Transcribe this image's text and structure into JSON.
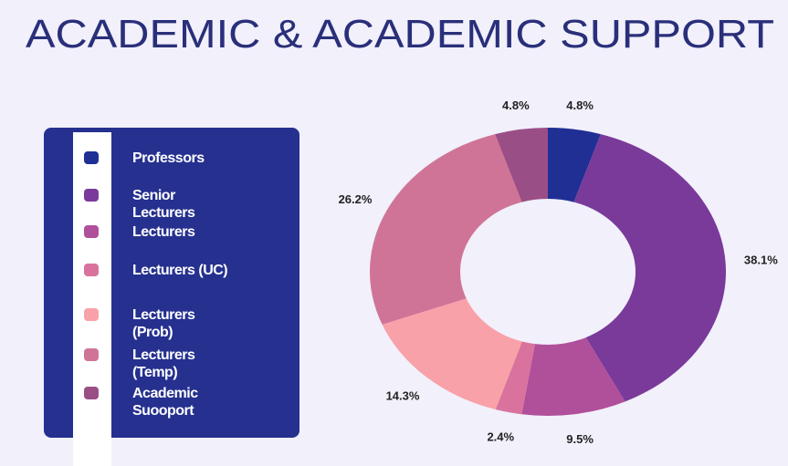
{
  "chart_data": {
    "type": "donut",
    "title": "ACADEMIC & ACADEMIC SUPPORT",
    "categories": [
      "Professors",
      "Senior Lecturers",
      "Lecturers",
      "Lecturers (UC)",
      "Lecturers (Prob)",
      "Lecturers (Temp)",
      "Academic Suooport"
    ],
    "values": [
      4.8,
      38.1,
      9.5,
      2.4,
      14.3,
      26.2,
      4.8
    ],
    "value_labels": [
      "4.8%",
      "38.1%",
      "9.5%",
      "2.4%",
      "14.3%",
      "26.2%",
      "4.8%"
    ],
    "colors": [
      "#1f2f94",
      "#7a3a9a",
      "#b04f9a",
      "#d9739d",
      "#f9a1a8",
      "#d07497",
      "#9a4e86"
    ],
    "legend": "left"
  }
}
